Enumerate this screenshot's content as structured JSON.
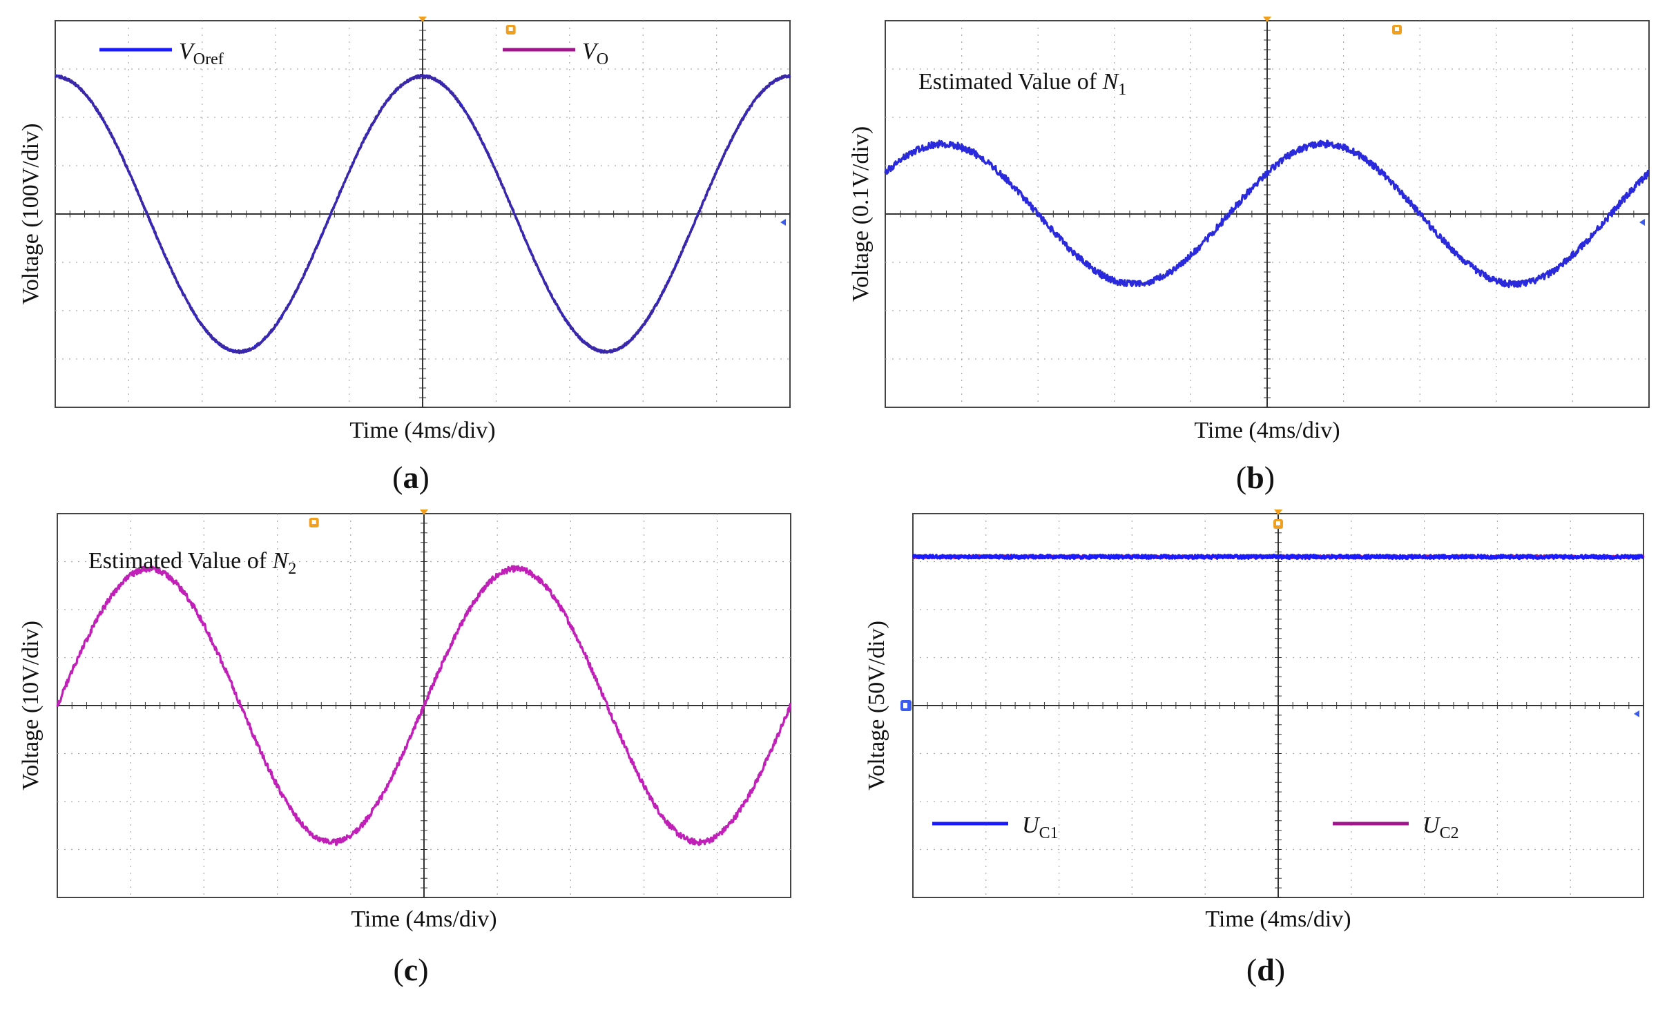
{
  "chart_data": [
    {
      "id": "a",
      "type": "line",
      "caption": "a",
      "xlabel": "Time (4ms/div)",
      "ylabel": "Voltage (100V/div)",
      "x_divisions": 10,
      "y_divisions": 8,
      "xlim": [
        0,
        10
      ],
      "ylim": [
        -4,
        4
      ],
      "grid": true,
      "trigger_marker": true,
      "level_marker": "right",
      "legend": [
        {
          "text": "V",
          "sub": "Oref",
          "color": "#1a1aff"
        },
        {
          "text": "V",
          "sub": "O",
          "color": "#a0148c"
        }
      ],
      "annotation": null,
      "series": [
        {
          "name": "V_Oref",
          "color": "#1a1aff",
          "wave": "sine",
          "amplitude_div": 2.85,
          "offset_div": 0,
          "period_div": 5,
          "phase_div": 0,
          "noise_div": 0.02
        },
        {
          "name": "V_O",
          "color": "#3a28a8",
          "wave": "sine",
          "amplitude_div": 2.85,
          "offset_div": 0,
          "period_div": 5,
          "phase_div": 0,
          "noise_div": 0.03
        }
      ]
    },
    {
      "id": "b",
      "type": "line",
      "caption": "b",
      "xlabel": "Time (4ms/div)",
      "ylabel": "Voltage (0.1V/div)",
      "x_divisions": 10,
      "y_divisions": 8,
      "xlim": [
        0,
        10
      ],
      "ylim": [
        -4,
        4
      ],
      "grid": true,
      "trigger_marker": true,
      "level_marker": "right",
      "legend": [],
      "annotation": {
        "text": "Estimated Value of N",
        "sub": "1"
      },
      "series": [
        {
          "name": "N1",
          "color": "#2a2adc",
          "wave": "sine",
          "amplitude_div": 1.45,
          "offset_div": 0,
          "period_div": 5,
          "phase_div": 0.75,
          "noise_div": 0.07
        }
      ]
    },
    {
      "id": "c",
      "type": "line",
      "caption": "c",
      "xlabel": "Time (4ms/div)",
      "ylabel": "Voltage (10V/div)",
      "x_divisions": 10,
      "y_divisions": 8,
      "xlim": [
        0,
        10
      ],
      "ylim": [
        -4,
        4
      ],
      "grid": true,
      "trigger_marker": true,
      "level_marker": "none",
      "legend": [],
      "annotation": {
        "text": "Estimated Value of N",
        "sub": "2"
      },
      "series": [
        {
          "name": "N2",
          "color": "#c020b8",
          "wave": "sine",
          "amplitude_div": 2.85,
          "offset_div": 0,
          "period_div": 5,
          "phase_div": 1.25,
          "noise_div": 0.06
        }
      ]
    },
    {
      "id": "d",
      "type": "line",
      "caption": "d",
      "xlabel": "Time (4ms/div)",
      "ylabel": "Voltage (50V/div)",
      "x_divisions": 10,
      "y_divisions": 8,
      "xlim": [
        0,
        10
      ],
      "ylim": [
        -4,
        4
      ],
      "grid": true,
      "trigger_marker": true,
      "level_marker": "both",
      "legend": [
        {
          "text": "U",
          "sub": "C1",
          "color": "#1a1aff"
        },
        {
          "text": "U",
          "sub": "C2",
          "color": "#a0148c"
        }
      ],
      "annotation": null,
      "series": [
        {
          "name": "U_C2",
          "color": "#b0147a",
          "wave": "dc",
          "amplitude_div": 0,
          "offset_div": 3.1,
          "period_div": 5,
          "phase_div": 0,
          "noise_div": 0.03
        },
        {
          "name": "U_C1",
          "color": "#1a1aff",
          "wave": "dc",
          "amplitude_div": 0,
          "offset_div": 3.1,
          "period_div": 5,
          "phase_div": 0,
          "noise_div": 0.04
        }
      ]
    }
  ],
  "colors": {
    "grid_major": "#555555",
    "grid_minor": "#aaaaaa",
    "frame": "#444444",
    "trigger": "#f0a020",
    "level": "#3a5af0"
  }
}
